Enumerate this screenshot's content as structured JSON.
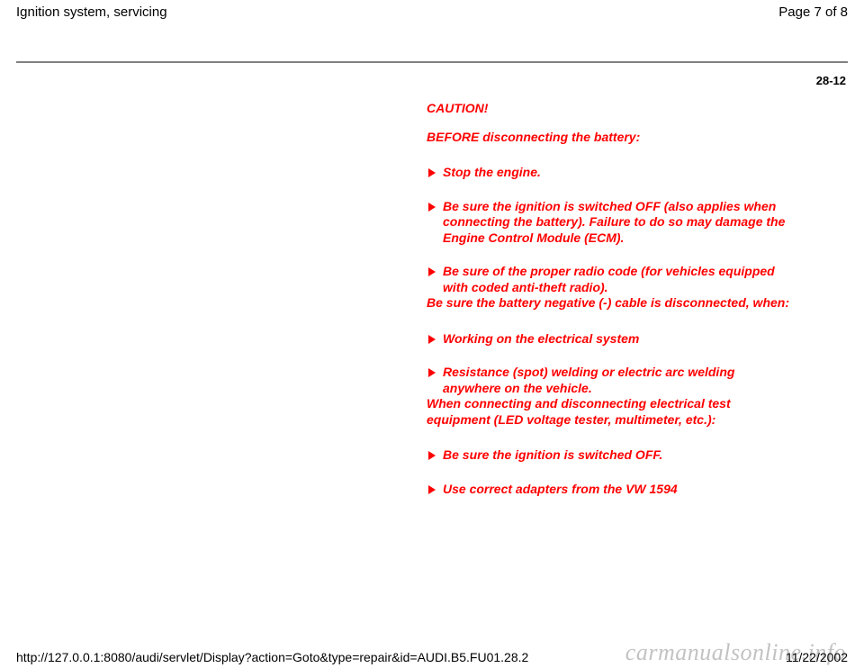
{
  "header": {
    "title": "Ignition system, servicing",
    "page": "Page 7 of 8"
  },
  "section_number": "28-12",
  "caution": {
    "heading": "CAUTION!",
    "subheading1": "BEFORE disconnecting the battery:",
    "list1": [
      "Stop the engine.",
      "Be sure the ignition is switched OFF (also applies when connecting the battery). Failure to do so may damage the Engine Control Module (ECM).",
      "Be sure of the proper radio code (for vehicles equipped with coded anti-theft radio)."
    ],
    "subheading2": "Be sure the battery negative (-) cable is disconnected, when:",
    "list2": [
      "Working on the electrical system",
      "Resistance (spot) welding or electric arc welding anywhere on the vehicle."
    ],
    "subheading3": "When connecting and disconnecting electrical test equipment (LED voltage tester, multimeter, etc.):",
    "list3": [
      "Be sure the ignition is switched OFF.",
      "Use correct adapters from the VW 1594"
    ]
  },
  "footer": {
    "url": "http://127.0.0.1:8080/audi/servlet/Display?action=Goto&type=repair&id=AUDI.B5.FU01.28.2",
    "date": "11/22/2002"
  },
  "watermark": "carmanualsonline.info",
  "colors": {
    "caution_text": "#ff0000",
    "rule": "#808080",
    "body_text": "#000000",
    "background": "#ffffff",
    "watermark": "rgba(120,120,120,0.45)"
  }
}
